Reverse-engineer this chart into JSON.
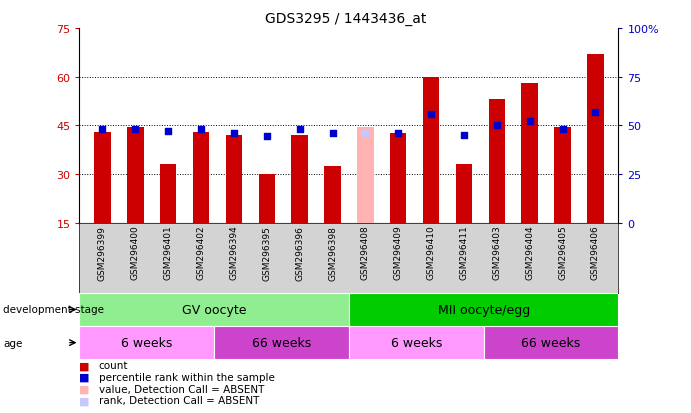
{
  "title": "GDS3295 / 1443436_at",
  "samples": [
    "GSM296399",
    "GSM296400",
    "GSM296401",
    "GSM296402",
    "GSM296394",
    "GSM296395",
    "GSM296396",
    "GSM296398",
    "GSM296408",
    "GSM296409",
    "GSM296410",
    "GSM296411",
    "GSM296403",
    "GSM296404",
    "GSM296405",
    "GSM296406"
  ],
  "counts": [
    43,
    44.5,
    33,
    43,
    42,
    30,
    42,
    32.5,
    44.5,
    42.5,
    60,
    33,
    53,
    58,
    44.5,
    67
  ],
  "count_absent": [
    false,
    false,
    false,
    false,
    false,
    false,
    false,
    false,
    true,
    false,
    false,
    false,
    false,
    false,
    false,
    false
  ],
  "percentile_ranks": [
    48,
    48,
    47,
    48,
    46,
    44.5,
    48,
    46,
    46,
    46,
    56,
    45,
    50,
    52,
    48,
    57
  ],
  "rank_absent": [
    false,
    false,
    false,
    false,
    false,
    false,
    false,
    false,
    true,
    false,
    false,
    false,
    false,
    false,
    false,
    false
  ],
  "ylim": [
    15,
    75
  ],
  "yticks_left": [
    15,
    30,
    45,
    60,
    75
  ],
  "yticks_right_labels": [
    "0",
    "25",
    "50",
    "75",
    "100%"
  ],
  "yticks_right_vals": [
    15,
    30,
    45,
    60,
    75
  ],
  "bar_color": "#cc0000",
  "bar_absent_color": "#ffb3b3",
  "dot_color": "#0000cc",
  "dot_absent_color": "#c8c8ff",
  "dot_size": 25,
  "bar_width": 0.5,
  "background_color": "#ffffff",
  "gv_color": "#90ee90",
  "mii_color": "#00cc00",
  "age_color_6w": "#ff99ff",
  "age_color_66w": "#cc44cc",
  "legend_items": [
    {
      "label": "count",
      "color": "#cc0000"
    },
    {
      "label": "percentile rank within the sample",
      "color": "#0000cc"
    },
    {
      "label": "value, Detection Call = ABSENT",
      "color": "#ffb3b3"
    },
    {
      "label": "rank, Detection Call = ABSENT",
      "color": "#c8c8ff"
    }
  ],
  "development_stage_label": "development stage",
  "age_label": "age"
}
